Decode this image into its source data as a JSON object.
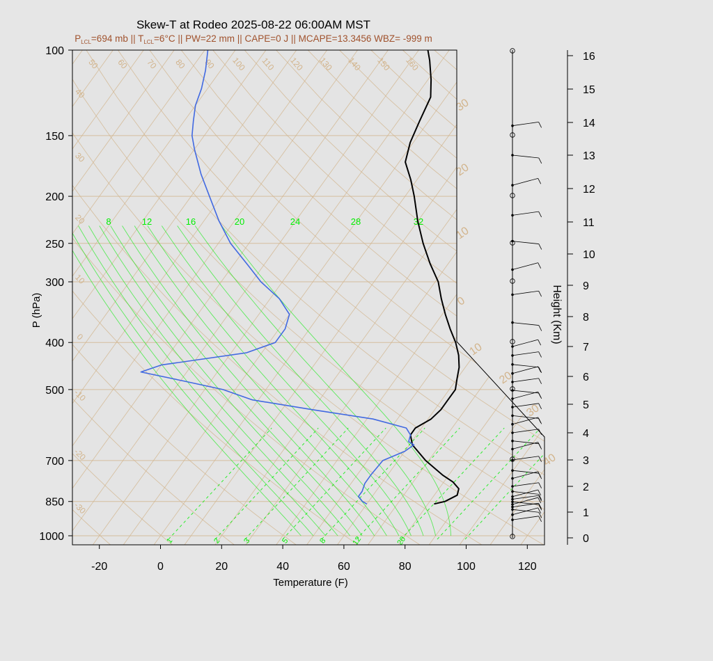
{
  "title": "Skew-T at Rodeo 2025-08-22 06:00AM MST",
  "subtitle": {
    "p_lcl": "P",
    "p_lcl_sub": "LCL",
    "p_lcl_val": "=694 mb || T",
    "t_lcl_sub": "LCL",
    "rest": "=6°C || PW=22 mm || CAPE=0 J || MCAPE=13.3456 WBZ= -999 m"
  },
  "colors": {
    "background": "#e6e6e6",
    "isotherm": "#d2b48c",
    "mixing_ratio": "#00ee00",
    "temperature": "#000000",
    "dewpoint": "#4169e1",
    "subtitle": "#a0522d"
  },
  "chart_data": {
    "type": "skew-t",
    "xlabel": "Temperature (F)",
    "ylabel": "P (hPa)",
    "y2label": "Height (Km)",
    "x_ticks": [
      -20,
      0,
      20,
      40,
      60,
      80,
      100,
      120
    ],
    "p_ticks": [
      1000,
      850,
      700,
      500,
      400,
      300,
      250,
      200,
      150,
      100
    ],
    "height_ticks": [
      0,
      1,
      2,
      3,
      4,
      5,
      6,
      7,
      8,
      9,
      10,
      11,
      12,
      13,
      14,
      15,
      16
    ],
    "isotherm_labels_top": [
      50,
      60,
      70,
      80,
      90,
      100,
      110,
      120,
      130,
      140,
      150,
      160
    ],
    "isotherm_labels_left": [
      40,
      30,
      20,
      10,
      0,
      -10,
      -20,
      -30
    ],
    "isotherm_labels_right": [
      30,
      20,
      10,
      0,
      10,
      20,
      30,
      40
    ],
    "wetbulb_labels": [
      8,
      12,
      16,
      20,
      24,
      28,
      32
    ],
    "mixing_ratio_labels": [
      1,
      2,
      3,
      5,
      8,
      12,
      20
    ],
    "temperature": {
      "p": [
        860,
        850,
        825,
        800,
        775,
        750,
        700,
        650,
        620,
        600,
        575,
        550,
        525,
        500,
        475,
        450,
        425,
        400,
        375,
        350,
        325,
        300,
        275,
        250,
        225,
        200,
        185,
        170,
        155,
        140,
        125,
        115,
        105,
        100
      ],
      "T": [
        82,
        85,
        87.5,
        86.5,
        83,
        78,
        69,
        61,
        58,
        58,
        61,
        62,
        62,
        62,
        60,
        58,
        55,
        51,
        46,
        41,
        36,
        31,
        24,
        17,
        10,
        3,
        -2,
        -8,
        -11,
        -13,
        -15,
        -19,
        -24,
        -27
      ]
    },
    "dewpoint": {
      "p": [
        860,
        850,
        830,
        810,
        780,
        750,
        700,
        670,
        650,
        640,
        620,
        600,
        575,
        550,
        525,
        500,
        480,
        460,
        445,
        420,
        400,
        375,
        350,
        325,
        300,
        275,
        250,
        225,
        200,
        180,
        160,
        150,
        140,
        130,
        120,
        110,
        100
      ],
      "Td": [
        60,
        58,
        55.5,
        55.5,
        54.5,
        54.5,
        55,
        60,
        61.5,
        59,
        58,
        55,
        42,
        20,
        -2,
        -14,
        -29,
        -45,
        -40,
        -15,
        -8,
        -8,
        -10,
        -17,
        -27,
        -36,
        -46,
        -55,
        -64,
        -72,
        -80,
        -84,
        -87,
        -90,
        -92,
        -95,
        -99
      ]
    },
    "wind_barbs_km": [
      0.7,
      0.9,
      1.1,
      1.2,
      1.3,
      1.4,
      1.5,
      1.6,
      1.8,
      2.0,
      2.3,
      2.6,
      3.0,
      3.4,
      3.7,
      4.0,
      4.3,
      4.6,
      4.9,
      5.2,
      5.5,
      5.8,
      6.1,
      6.4,
      6.7,
      7.0,
      7.8,
      8.7,
      9.5,
      10.4,
      11.2,
      12.1,
      13.0,
      13.9
    ]
  }
}
